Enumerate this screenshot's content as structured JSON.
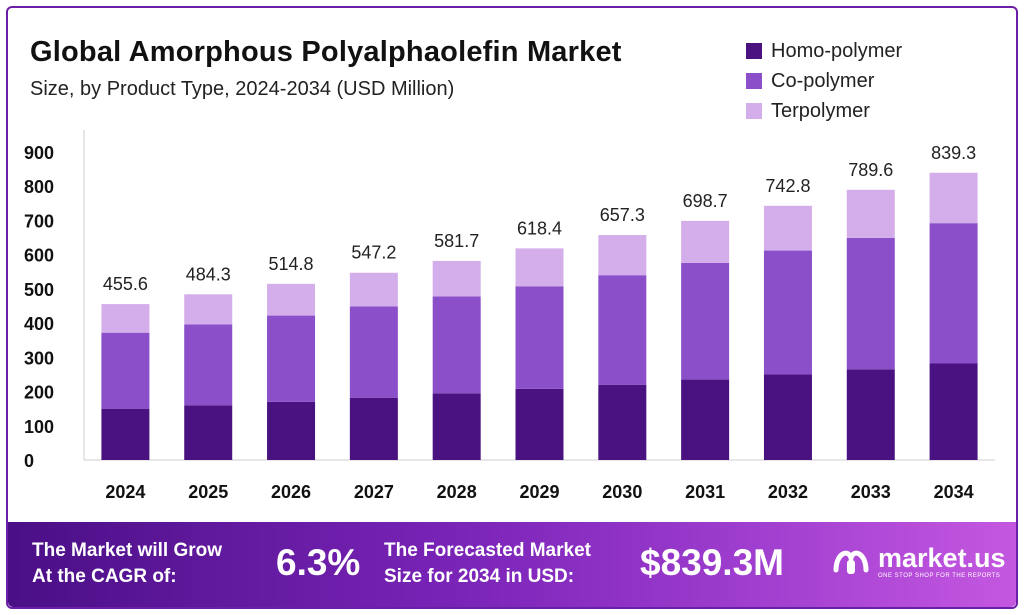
{
  "title": "Global Amorphous Polyalphaolefin Market",
  "subtitle": "Size, by Product Type, 2024-2034 (USD Million)",
  "colors": {
    "homo": "#4a1280",
    "co": "#8a4fc9",
    "ter": "#d4aeea",
    "axis": "#cfcfcf"
  },
  "legend": [
    {
      "label": "Homo-polymer",
      "color": "#4a1280"
    },
    {
      "label": "Co-polymer",
      "color": "#8a4fc9"
    },
    {
      "label": "Terpolymer",
      "color": "#d4aeea"
    }
  ],
  "chart_data": {
    "type": "bar",
    "stacked": true,
    "categories": [
      "2024",
      "2025",
      "2026",
      "2027",
      "2028",
      "2029",
      "2030",
      "2031",
      "2032",
      "2033",
      "2034"
    ],
    "series": [
      {
        "name": "Homo-polymer",
        "values": [
          150,
          160,
          170,
          182,
          195,
          208,
          220,
          235,
          250,
          265,
          282
        ]
      },
      {
        "name": "Co-polymer",
        "values": [
          222,
          236,
          252,
          267,
          283,
          299,
          320,
          341,
          362,
          384,
          410
        ]
      },
      {
        "name": "Terpolymer",
        "values": [
          83.6,
          88.3,
          92.8,
          98.2,
          103.7,
          111.4,
          117.3,
          122.7,
          130.8,
          140.6,
          147.3
        ]
      }
    ],
    "totals": [
      "455.6",
      "484.3",
      "514.8",
      "547.2",
      "581.7",
      "618.4",
      "657.3",
      "698.7",
      "742.8",
      "789.6",
      "839.3"
    ],
    "yticks": [
      "0",
      "100",
      "200",
      "300",
      "400",
      "500",
      "600",
      "700",
      "800",
      "900"
    ],
    "ylim": [
      0,
      900
    ],
    "grid": false,
    "legend_position": "top-right"
  },
  "banner": {
    "cagr_label_line1": "The Market will Grow",
    "cagr_label_line2": "At the CAGR of:",
    "cagr_value": "6.3%",
    "forecast_label_line1": "The Forecasted Market",
    "forecast_label_line2": "Size for 2034 in USD:",
    "forecast_value": "$839.3M",
    "brand": "market.us",
    "brand_tagline": "ONE STOP SHOP FOR THE REPORTS"
  }
}
